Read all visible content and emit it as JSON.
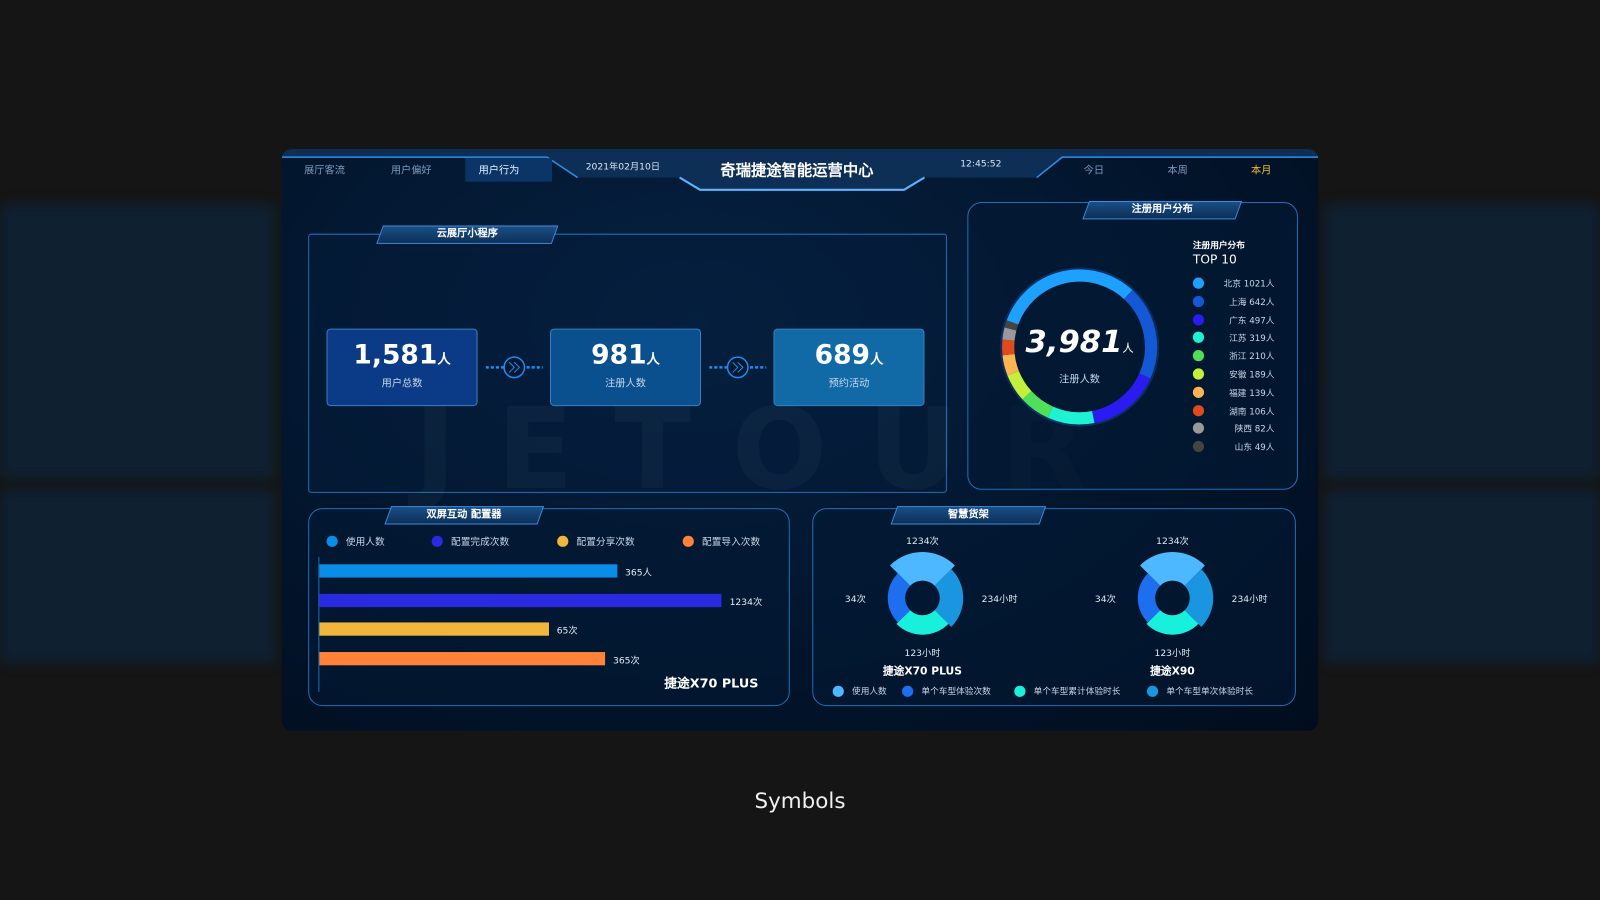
{
  "header": {
    "tabs_left": [
      "展厅客流",
      "用户偏好",
      "用户行为"
    ],
    "active_left": "用户行为",
    "date": "2021年02月10日",
    "title": "奇瑞捷途智能运营中心",
    "time": "12:45:52",
    "tabs_right": [
      "今日",
      "本周",
      "本月"
    ],
    "active_right": "本月"
  },
  "mini_program": {
    "title": "云展厅小程序",
    "watermark": "JETOUR",
    "cards": [
      {
        "value": "1,581",
        "unit": "人",
        "label": "用户总数",
        "color": "#0b3a86"
      },
      {
        "value": "981",
        "unit": "人",
        "label": "注册人数",
        "color": "#0a4f8e"
      },
      {
        "value": "689",
        "unit": "人",
        "label": "预约活动",
        "color": "#116aa6"
      }
    ]
  },
  "registered": {
    "title": "注册用户分布",
    "subtitle": "注册用户分布",
    "top_label": "TOP 10",
    "total": "3,981",
    "unit": "人",
    "total_label": "注册人数",
    "items": [
      {
        "name": "北京",
        "value": 1021,
        "text": "北京 1021人",
        "color": "#1ea0ff"
      },
      {
        "name": "上海",
        "value": 642,
        "text": "上海 642人",
        "color": "#1458d6"
      },
      {
        "name": "广东",
        "value": 497,
        "text": "广东 497人",
        "color": "#2a1cf0"
      },
      {
        "name": "江苏",
        "value": 319,
        "text": "江苏 319人",
        "color": "#1df2d2"
      },
      {
        "name": "浙江",
        "value": 210,
        "text": "浙江 210人",
        "color": "#4fe05a"
      },
      {
        "name": "安徽",
        "value": 189,
        "text": "安徽 189人",
        "color": "#c4f03c"
      },
      {
        "name": "福建",
        "value": 139,
        "text": "福建 139人",
        "color": "#ffb454"
      },
      {
        "name": "湖南",
        "value": 106,
        "text": "湖南 106人",
        "color": "#e04a1c"
      },
      {
        "name": "陕西",
        "value": 82,
        "text": "陕西 82人",
        "color": "#999999"
      },
      {
        "name": "山东",
        "value": 49,
        "text": "山东 49人",
        "color": "#444444"
      }
    ]
  },
  "configurator": {
    "title": "双屏互动 配置器",
    "model": "捷途X70 PLUS",
    "chart_data": {
      "type": "bar",
      "orientation": "horizontal",
      "series": [
        {
          "name": "使用人数",
          "value": 365,
          "label": "365人",
          "bar_fraction": 0.74,
          "color": "#0a8de6"
        },
        {
          "name": "配置完成次数",
          "value": 1234,
          "label": "1234次",
          "bar_fraction": 1.0,
          "color": "#2a2ae0"
        },
        {
          "name": "配置分享次数",
          "value": 65,
          "label": "65次",
          "bar_fraction": 0.57,
          "color": "#f2b63c"
        },
        {
          "name": "配置导入次数",
          "value": 365,
          "label": "365次",
          "bar_fraction": 0.71,
          "color": "#ff8238"
        }
      ]
    }
  },
  "shelf": {
    "title": "智慧货架",
    "legend": [
      {
        "label": "使用人数",
        "color": "#4db8ff"
      },
      {
        "label": "单个车型体验次数",
        "color": "#1e6ff0"
      },
      {
        "label": "单个车型累计体验时长",
        "color": "#19f0dc"
      },
      {
        "label": "单个车型单次体验时长",
        "color": "#1a96e0"
      }
    ],
    "chart_data": [
      {
        "type": "pie",
        "title": "捷途X70 PLUS",
        "labels": {
          "top": "1234次",
          "right": "234小时",
          "bottom": "123小时",
          "left": "34次"
        }
      },
      {
        "type": "pie",
        "title": "捷途X90",
        "labels": {
          "top": "1234次",
          "right": "234小时",
          "bottom": "123小时",
          "left": "34次"
        }
      }
    ]
  },
  "caption": "Symbols"
}
